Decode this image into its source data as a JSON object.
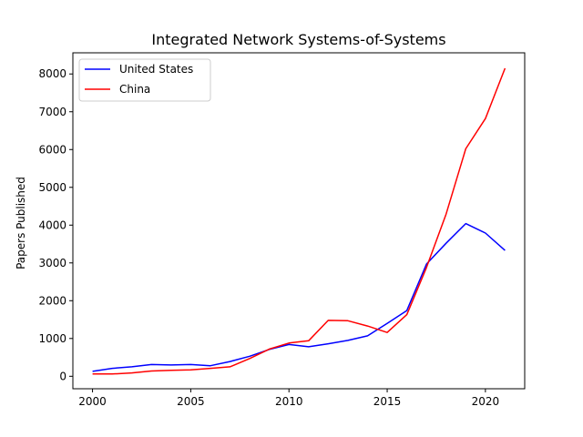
{
  "chart_data": {
    "type": "line",
    "title": "Integrated Network Systems-of-Systems",
    "xlabel": "",
    "ylabel": "Papers Published",
    "xlim": [
      1999,
      2022
    ],
    "ylim": [
      -330,
      8560
    ],
    "xticks": [
      2000,
      2005,
      2010,
      2015,
      2020
    ],
    "yticks": [
      0,
      1000,
      2000,
      3000,
      4000,
      5000,
      6000,
      7000,
      8000
    ],
    "grid": false,
    "legend": "top-left",
    "x": [
      2000,
      2001,
      2002,
      2003,
      2004,
      2005,
      2006,
      2007,
      2008,
      2009,
      2010,
      2011,
      2012,
      2013,
      2014,
      2015,
      2016,
      2017,
      2018,
      2019,
      2020,
      2021
    ],
    "series": [
      {
        "name": "United States",
        "color": "#0000ff",
        "values": [
          130,
          210,
          250,
          310,
          300,
          310,
          280,
          390,
          530,
          710,
          840,
          780,
          860,
          950,
          1070,
          1400,
          1740,
          2970,
          3520,
          4040,
          3790,
          3330
        ]
      },
      {
        "name": "China",
        "color": "#ff0000",
        "values": [
          60,
          60,
          90,
          140,
          160,
          170,
          210,
          250,
          470,
          720,
          880,
          940,
          1480,
          1470,
          1330,
          1160,
          1630,
          2880,
          4290,
          6020,
          6820,
          8150
        ]
      }
    ]
  }
}
